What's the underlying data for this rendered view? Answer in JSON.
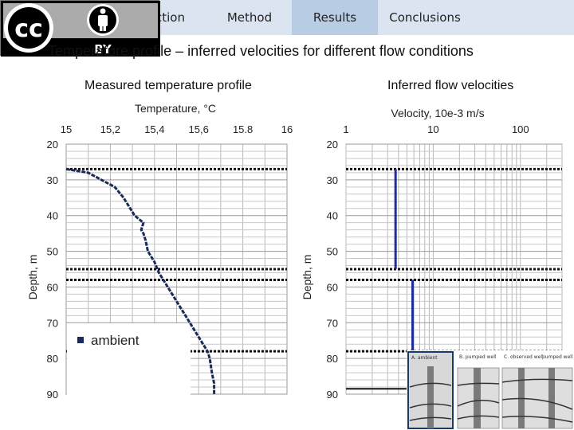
{
  "nav": {
    "tabs": [
      {
        "label": "Introduction",
        "visible_text": "ction"
      },
      {
        "label": "Method"
      },
      {
        "label": "Results"
      },
      {
        "label": "Conclusions"
      }
    ],
    "active_tab": "Results"
  },
  "license_badge": {
    "text": "BY"
  },
  "slide_title": "Temperature profile – inferred velocities for different flow conditions",
  "left_subtitle": "Measured temperature profile",
  "right_subtitle": "Inferred flow velocities",
  "schematic": {
    "captions": [
      "A. ambient",
      "B. pumped well",
      "C. observed well",
      "pumped well"
    ]
  },
  "colors": {
    "profile": "#1a2a5a",
    "velocity": "#1f2f9a",
    "grid": "#b8b8b8",
    "dotted": "#111111"
  },
  "chart_data": [
    {
      "type": "line",
      "title": "Temperature, °C",
      "xlabel": "Temperature, °C",
      "ylabel": "Depth, m",
      "xlim": [
        15,
        16
      ],
      "ylim": [
        20,
        90
      ],
      "y_inverted": true,
      "x_axis_position": "top",
      "x_ticks": [
        "15",
        "15,2",
        "15,4",
        "15,6",
        "15.8",
        "16"
      ],
      "y_ticks": [
        "20",
        "30",
        "40",
        "50",
        "60",
        "70",
        "80",
        "90"
      ],
      "dotted_lines_depth": [
        27,
        55,
        58,
        78
      ],
      "legend": {
        "entries": [
          "ambient"
        ],
        "placement": "bottom-left"
      },
      "series": [
        {
          "name": "ambient",
          "x": [
            15.0,
            15.1,
            15.16,
            15.22,
            15.26,
            15.29,
            15.31,
            15.33,
            15.35,
            15.34,
            15.35,
            15.36,
            15.37,
            15.4,
            15.42,
            15.46,
            15.51,
            15.55,
            15.59,
            15.62,
            15.64,
            15.65,
            15.66,
            15.67,
            15.67
          ],
          "y": [
            27,
            28,
            30,
            32,
            35,
            38,
            40,
            41,
            42,
            44,
            45,
            47,
            50,
            53,
            56,
            60,
            65,
            69,
            73,
            76,
            78,
            80,
            84,
            87,
            90
          ]
        }
      ]
    },
    {
      "type": "line",
      "title": "Velocity, 10e-3 m/s",
      "xlabel": "Velocity, 10e-3 m/s",
      "ylabel": "Depth, m",
      "x_scale": "log",
      "xlim": [
        1,
        300
      ],
      "ylim": [
        20,
        90
      ],
      "y_inverted": true,
      "x_axis_position": "top",
      "x_ticks": [
        "1",
        "10",
        "100"
      ],
      "y_ticks": [
        "20",
        "30",
        "40",
        "50",
        "60",
        "70",
        "80",
        "90"
      ],
      "dotted_lines_depth": [
        27,
        55,
        58,
        78
      ],
      "series": [
        {
          "x": [
            3.7,
            3.7
          ],
          "y": [
            27,
            55
          ]
        },
        {
          "x": [
            5.8,
            5.8
          ],
          "y": [
            58,
            78
          ]
        }
      ]
    }
  ]
}
